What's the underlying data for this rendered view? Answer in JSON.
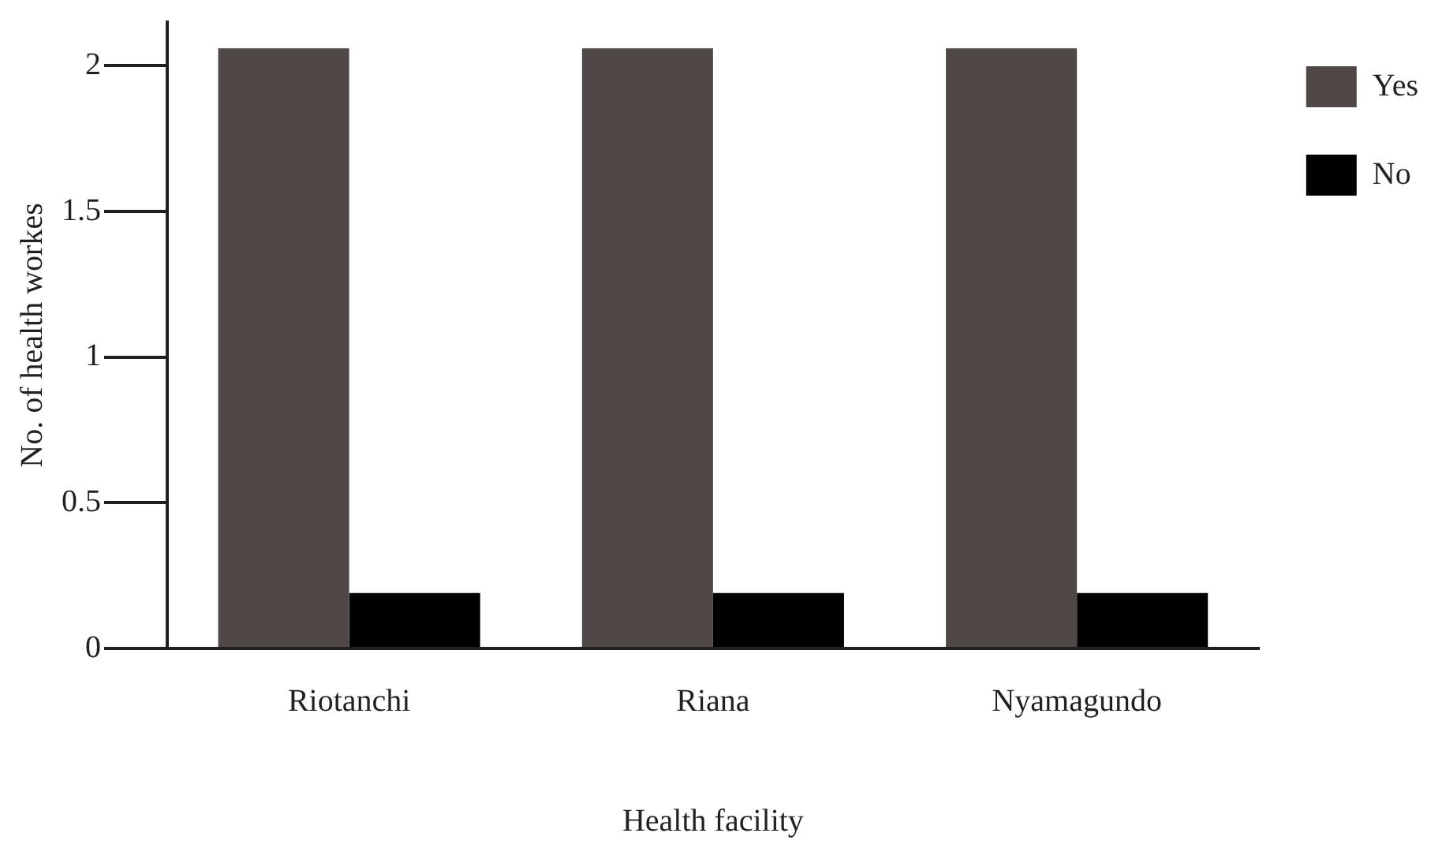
{
  "chart_data": {
    "type": "bar",
    "xlabel": "Health facility",
    "ylabel": "No. of health workes",
    "categories": [
      "Riotanchi",
      "Riana",
      "Nyamagundo"
    ],
    "series": [
      {
        "name": "Yes",
        "color": "#504846",
        "values": [
          2.06,
          2.06,
          2.06
        ]
      },
      {
        "name": "No",
        "color": "#000000",
        "values": [
          0.19,
          0.19,
          0.19
        ]
      }
    ],
    "ylim": [
      0,
      2.15
    ],
    "yticks": [
      0,
      0.5,
      1,
      1.5,
      2
    ],
    "grid": false,
    "legend": "top right"
  }
}
